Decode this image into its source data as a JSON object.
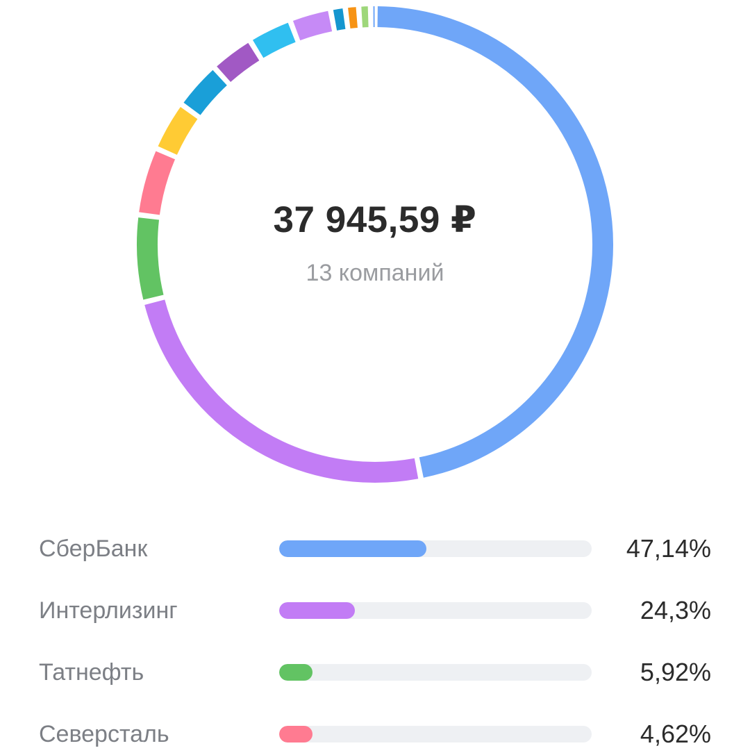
{
  "summary": {
    "total": "37 945,59 ₽",
    "count_label": "13 компаний"
  },
  "chart_data": {
    "type": "pie",
    "style": "donut",
    "slices": [
      {
        "value": 47.14,
        "color": "#6fa6f8"
      },
      {
        "value": 24.3,
        "color": "#c27cf5"
      },
      {
        "value": 5.92,
        "color": "#62c363"
      },
      {
        "value": 4.62,
        "color": "#ff7b91"
      },
      {
        "value": 3.4,
        "color": "#ffcb34"
      },
      {
        "value": 3.3,
        "color": "#1a9fd8"
      },
      {
        "value": 3.0,
        "color": "#a159c4"
      },
      {
        "value": 3.0,
        "color": "#30bff0"
      },
      {
        "value": 2.8,
        "color": "#c68af6"
      },
      {
        "value": 1.0,
        "color": "#1596cf"
      },
      {
        "value": 0.9,
        "color": "#f79314"
      },
      {
        "value": 0.8,
        "color": "#9ed77a"
      },
      {
        "value": 0.3,
        "color": "#6fa6f8"
      }
    ]
  },
  "legend": [
    {
      "label": "СберБанк",
      "value": "47,14%",
      "fraction": 0.4714,
      "color": "#6fa6f8"
    },
    {
      "label": "Интерлизинг",
      "value": "24,3%",
      "fraction": 0.243,
      "color": "#c27cf5"
    },
    {
      "label": "Татнефть",
      "value": "5,92%",
      "fraction": 0.0592,
      "color": "#62c363"
    },
    {
      "label": "Северсталь",
      "value": "4,62%",
      "fraction": 0.0462,
      "color": "#ff7b91"
    }
  ]
}
